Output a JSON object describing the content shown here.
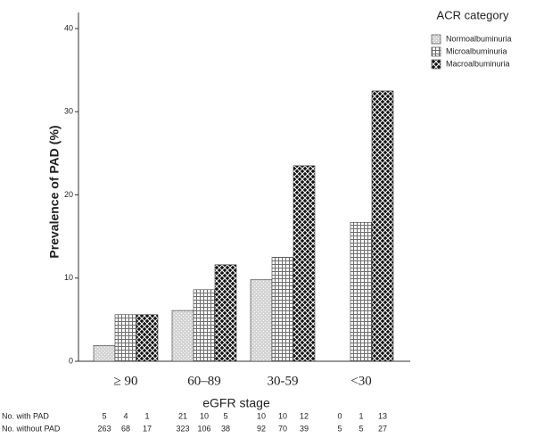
{
  "chart_data": {
    "type": "bar",
    "y_label": "Prevalence of PAD (%)",
    "x_label": "eGFR stage",
    "legend_title": "ACR category",
    "categories": [
      "≥ 90",
      "60–89",
      "30-59",
      "<30"
    ],
    "series": [
      {
        "name": "Normoalbuminuria",
        "color": "#d4d4d4",
        "values": [
          1.9,
          6.1,
          9.8,
          0
        ]
      },
      {
        "name": "Microalbuminuria",
        "color": "#6e6e6e",
        "values": [
          5.6,
          8.6,
          12.5,
          16.7
        ]
      },
      {
        "name": "Macroalbuminuria",
        "color": "#111111",
        "values": [
          5.6,
          11.6,
          23.5,
          32.5
        ]
      }
    ],
    "ylim": [
      0,
      40
    ],
    "yticks": [
      0,
      10,
      20,
      30,
      40
    ],
    "table": [
      {
        "label": "No. with PAD",
        "values": [
          [
            "5",
            "4",
            "1"
          ],
          [
            "21",
            "10",
            "5"
          ],
          [
            "10",
            "10",
            "12"
          ],
          [
            "0",
            "1",
            "13"
          ]
        ]
      },
      {
        "label": "No. without PAD",
        "values": [
          [
            "263",
            "68",
            "17"
          ],
          [
            "323",
            "106",
            "38"
          ],
          [
            "92",
            "70",
            "39"
          ],
          [
            "5",
            "5",
            "27"
          ]
        ]
      }
    ]
  }
}
